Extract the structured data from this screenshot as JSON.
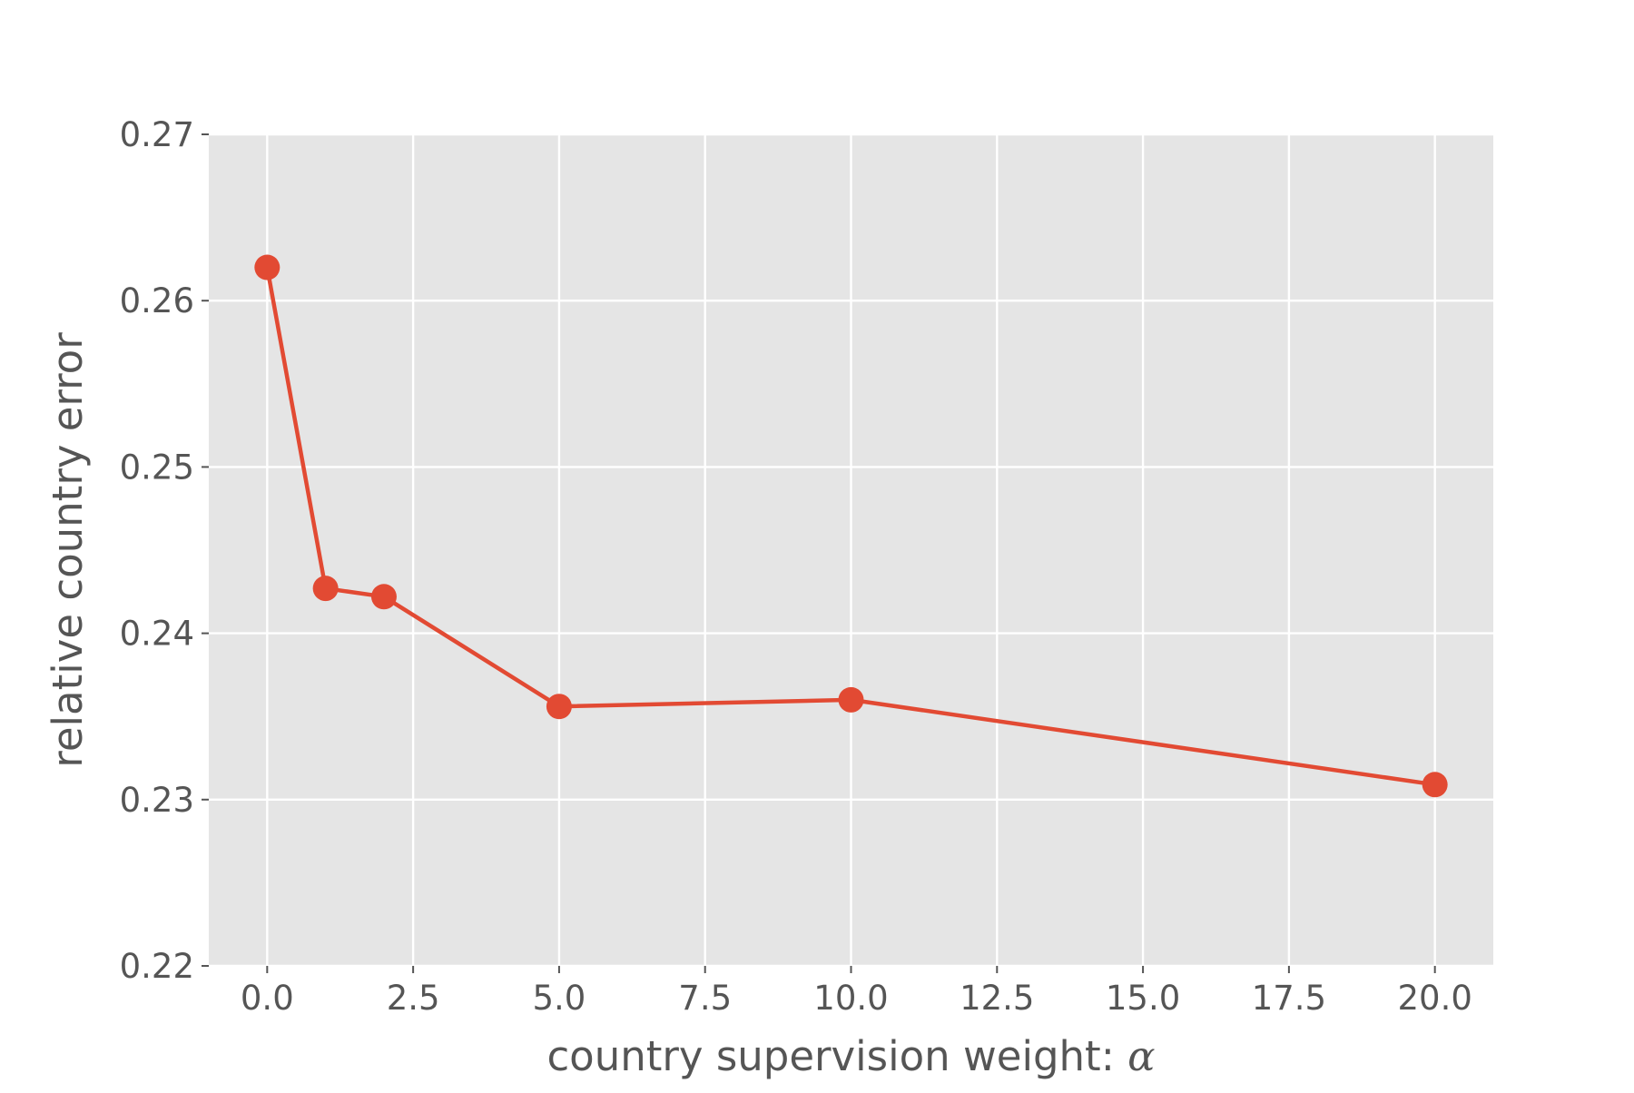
{
  "chart_data": {
    "type": "line",
    "style": "ggplot",
    "xlabel": "country supervision weight: ",
    "xlabel_symbol": "α",
    "ylabel": "relative country error",
    "xlim": [
      -1.0,
      21.0
    ],
    "ylim": [
      0.22,
      0.27
    ],
    "grid": true,
    "x_ticks": [
      0.0,
      2.5,
      5.0,
      7.5,
      10.0,
      12.5,
      15.0,
      17.5,
      20.0
    ],
    "x_tick_labels": [
      "0.0",
      "2.5",
      "5.0",
      "7.5",
      "10.0",
      "12.5",
      "15.0",
      "17.5",
      "20.0"
    ],
    "y_ticks": [
      0.22,
      0.23,
      0.24,
      0.25,
      0.26,
      0.27
    ],
    "y_tick_labels": [
      "0.22",
      "0.23",
      "0.24",
      "0.25",
      "0.26",
      "0.27"
    ],
    "series": [
      {
        "x": [
          0,
          1,
          2,
          5,
          10,
          20
        ],
        "y": [
          0.262,
          0.2427,
          0.2422,
          0.2356,
          0.236,
          0.2309
        ],
        "color": "#E24A33",
        "marker": "circle"
      }
    ],
    "colors": {
      "plot_background": "#E5E5E5",
      "grid": "#FFFFFF",
      "text": "#555555"
    }
  }
}
